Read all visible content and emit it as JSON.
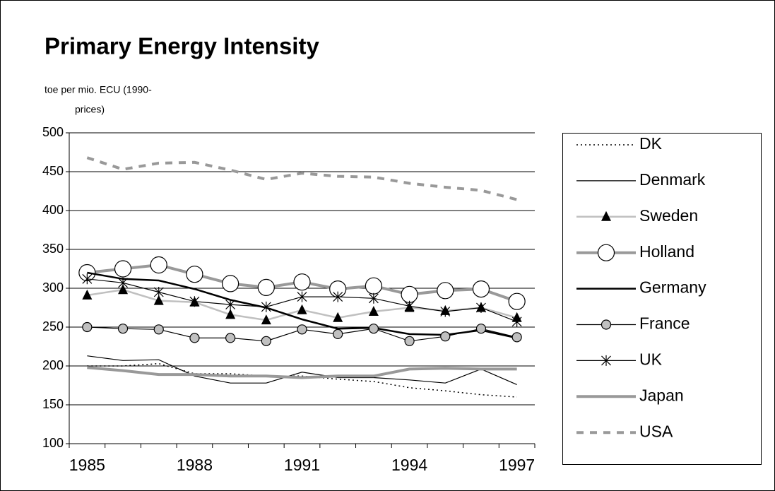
{
  "chart_data": {
    "type": "line",
    "title": "Primary Energy Intensity",
    "y_label": [
      "toe per mio. ECU (1990-",
      "prices)"
    ],
    "categories": [
      "1985",
      null,
      null,
      "1988",
      null,
      null,
      "1991",
      null,
      null,
      "1994",
      null,
      null,
      "1997"
    ],
    "ylim": [
      100,
      500
    ],
    "yticks": [
      100,
      150,
      200,
      250,
      300,
      350,
      400,
      450,
      500
    ],
    "grid": true,
    "legend": "right",
    "series": [
      {
        "name": "DK",
        "color": "#000000",
        "width": 1.5,
        "dash": "2 4",
        "marker": "none",
        "values": [
          200,
          200,
          203,
          190,
          190,
          187,
          187,
          183,
          180,
          172,
          168,
          163,
          160
        ]
      },
      {
        "name": "Denmark",
        "color": "#000000",
        "width": 1.2,
        "dash": "none",
        "marker": "none",
        "values": [
          213,
          207,
          208,
          187,
          178,
          178,
          192,
          185,
          185,
          182,
          178,
          196,
          176
        ]
      },
      {
        "name": "Sweden",
        "color": "#c0c0c0",
        "width": 2.5,
        "dash": "none",
        "marker": "triangle",
        "values": [
          291,
          298,
          284,
          282,
          266,
          259,
          272,
          262,
          270,
          275,
          271,
          275,
          262
        ]
      },
      {
        "name": "Holland",
        "color": "#999999",
        "width": 4,
        "dash": "none",
        "marker": "open-circle",
        "values": [
          320,
          325,
          330,
          318,
          306,
          301,
          308,
          299,
          303,
          292,
          297,
          299,
          283
        ]
      },
      {
        "name": "Germany",
        "color": "#000000",
        "width": 2.5,
        "dash": "none",
        "marker": "none",
        "values": [
          320,
          312,
          310,
          299,
          285,
          275,
          260,
          248,
          249,
          241,
          240,
          246,
          236
        ]
      },
      {
        "name": "France",
        "color": "#000000",
        "width": 1.2,
        "dash": "none",
        "marker": "filled-circle",
        "values": [
          250,
          248,
          247,
          236,
          236,
          232,
          247,
          241,
          248,
          232,
          238,
          248,
          237
        ]
      },
      {
        "name": "UK",
        "color": "#000000",
        "width": 1.2,
        "dash": "none",
        "marker": "star",
        "values": [
          312,
          307,
          295,
          283,
          279,
          276,
          289,
          289,
          287,
          277,
          270,
          275,
          257
        ]
      },
      {
        "name": "Japan",
        "color": "#999999",
        "width": 4,
        "dash": "none",
        "marker": "none",
        "values": [
          198,
          194,
          189,
          189,
          187,
          187,
          185,
          187,
          187,
          196,
          197,
          196,
          196
        ]
      },
      {
        "name": "USA",
        "color": "#999999",
        "width": 4,
        "dash": "10 9",
        "marker": "none",
        "values": [
          468,
          453,
          461,
          462,
          452,
          440,
          448,
          444,
          443,
          435,
          430,
          426,
          414
        ]
      }
    ]
  }
}
